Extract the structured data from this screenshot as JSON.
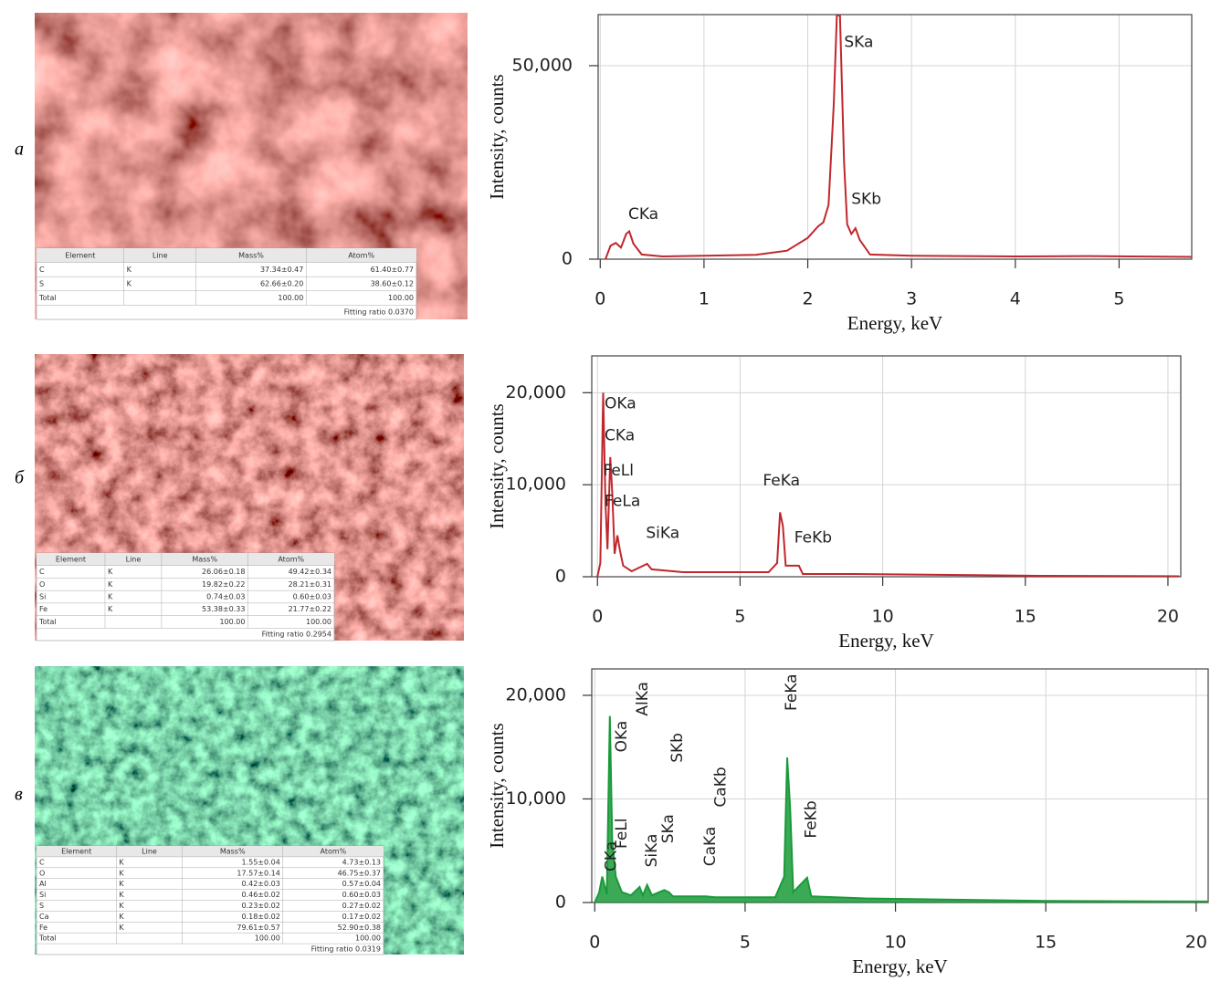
{
  "panels": [
    {
      "label": "а",
      "table": {
        "header": [
          "Element",
          "Line",
          "Mass%",
          "Atom%"
        ],
        "rows": [
          [
            "C",
            "K",
            "37.34±0.47",
            "61.40±0.77"
          ],
          [
            "S",
            "K",
            "62.66±0.20",
            "38.60±0.12"
          ],
          [
            "Total",
            null,
            "100.00",
            "100.00"
          ]
        ],
        "footer": "Fitting ratio 0.0370"
      }
    },
    {
      "label": "б",
      "table": {
        "header": [
          "Element",
          "Line",
          "Mass%",
          "Atom%"
        ],
        "rows": [
          [
            "C",
            "K",
            "26.06±0.18",
            "49.42±0.34"
          ],
          [
            "O",
            "K",
            "19.82±0.22",
            "28.21±0.31"
          ],
          [
            "Si",
            "K",
            "0.74±0.03",
            "0.60±0.03"
          ],
          [
            "Fe",
            "K",
            "53.38±0.33",
            "21.77±0.22"
          ],
          [
            "Total",
            null,
            "100.00",
            "100.00"
          ]
        ],
        "footer": "Fitting ratio 0.2954"
      }
    },
    {
      "label": "в",
      "table": {
        "header": [
          "Element",
          "Line",
          "Mass%",
          "Atom%"
        ],
        "rows": [
          [
            "C",
            "K",
            "1.55±0.04",
            "4.73±0.13"
          ],
          [
            "O",
            "K",
            "17.57±0.14",
            "46.75±0.37"
          ],
          [
            "Al",
            "K",
            "0.42±0.03",
            "0.57±0.04"
          ],
          [
            "Si",
            "K",
            "0.46±0.02",
            "0.60±0.03"
          ],
          [
            "S",
            "K",
            "0.23±0.02",
            "0.27±0.02"
          ],
          [
            "Ca",
            "K",
            "0.18±0.02",
            "0.17±0.02"
          ],
          [
            "Fe",
            "K",
            "79.61±0.57",
            "52.90±0.38"
          ],
          [
            "Total",
            null,
            "100.00",
            "100.00"
          ]
        ],
        "footer": "Fitting ratio 0.0319"
      }
    }
  ],
  "chart_data": [
    {
      "type": "line",
      "xlabel": "Energy, keV",
      "ylabel": "Intensity, counts",
      "color": "#c0272d",
      "grid": true,
      "x": [
        0.05,
        0.1,
        0.15,
        0.2,
        0.25,
        0.28,
        0.32,
        0.4,
        0.6,
        1.0,
        1.5,
        1.8,
        2.0,
        2.1,
        2.15,
        2.2,
        2.25,
        2.28,
        2.31,
        2.35,
        2.38,
        2.42,
        2.46,
        2.5,
        2.6,
        3.0,
        4.0,
        4.7,
        5.7
      ],
      "values": [
        0,
        3500,
        4200,
        3000,
        6500,
        7200,
        4000,
        1200,
        700,
        900,
        1100,
        2200,
        5500,
        8500,
        9500,
        14000,
        40000,
        63000,
        63000,
        25000,
        9000,
        6500,
        8000,
        5000,
        1200,
        900,
        700,
        800,
        600
      ],
      "xlim": [
        -0.02,
        5.7
      ],
      "ylim": [
        0,
        63200
      ],
      "xticks": [
        0,
        1,
        2,
        3,
        4,
        5
      ],
      "yticks": [
        0,
        {
          "value": 50000,
          "label": "50,000"
        }
      ],
      "annotations": [
        {
          "text": "CKa",
          "x": 0.27,
          "y": 11500
        },
        {
          "text": "SKa",
          "x": 2.35,
          "y": 56000
        },
        {
          "text": "SKb",
          "x": 2.42,
          "y": 15500
        }
      ]
    },
    {
      "type": "line",
      "xlabel": "Energy, keV",
      "ylabel": "Intensity, counts",
      "color": "#c0272d",
      "grid": true,
      "x": [
        0,
        0.1,
        0.2,
        0.28,
        0.35,
        0.45,
        0.52,
        0.6,
        0.7,
        0.78,
        0.9,
        1.2,
        1.74,
        1.9,
        3,
        6.0,
        6.3,
        6.4,
        6.5,
        6.6,
        7.06,
        7.2,
        9,
        14,
        15.5,
        20.4
      ],
      "values": [
        0,
        1500,
        20000,
        8000,
        3000,
        13000,
        9000,
        2500,
        4500,
        3000,
        1200,
        600,
        1400,
        800,
        500,
        500,
        1500,
        7000,
        5500,
        1200,
        1200,
        300,
        300,
        150,
        100,
        50
      ],
      "xlim": [
        -0.2,
        20.45
      ],
      "ylim": [
        0,
        24000
      ],
      "xticks": [
        0,
        5,
        10,
        15,
        20
      ],
      "yticks": [
        0,
        {
          "value": 10000,
          "label": "10,000"
        },
        {
          "value": 20000,
          "label": "20,000"
        }
      ],
      "annotations": [
        {
          "text": "OKa",
          "x": 0.25,
          "y": 18800
        },
        {
          "text": "CKa",
          "x": 0.25,
          "y": 15300
        },
        {
          "text": "FeLl",
          "x": 0.2,
          "y": 11500
        },
        {
          "text": "FeLa",
          "x": 0.25,
          "y": 8200
        },
        {
          "text": "SiKa",
          "x": 1.7,
          "y": 4700
        },
        {
          "text": "FeKa",
          "x": 5.8,
          "y": 10400
        },
        {
          "text": "FeKb",
          "x": 6.9,
          "y": 4200
        }
      ]
    },
    {
      "type": "area",
      "xlabel": "Energy, keV",
      "ylabel": "Intensity, counts",
      "color": "#1a9a3a",
      "grid": true,
      "x": [
        0,
        0.15,
        0.25,
        0.4,
        0.5,
        0.58,
        0.7,
        0.9,
        1.2,
        1.49,
        1.6,
        1.74,
        1.9,
        2.31,
        2.46,
        2.6,
        3.69,
        4.0,
        6.0,
        6.3,
        6.4,
        6.5,
        6.6,
        7.06,
        7.2,
        9,
        15,
        20.4
      ],
      "values": [
        0,
        1000,
        2500,
        800,
        18000,
        6000,
        2500,
        1000,
        700,
        1500,
        700,
        1700,
        700,
        1200,
        1000,
        600,
        600,
        500,
        500,
        2500,
        14000,
        9000,
        1000,
        2400,
        600,
        400,
        150,
        100
      ],
      "xlim": [
        -0.1,
        20.4
      ],
      "ylim": [
        0,
        22550
      ],
      "xticks": [
        0,
        5,
        10,
        15,
        20
      ],
      "yticks": [
        0,
        {
          "value": 10000,
          "label": "10,000"
        },
        {
          "value": 20000,
          "label": "20,000"
        }
      ],
      "annotations": [
        {
          "text": "CKa",
          "x": 0.55,
          "y": 3000
        },
        {
          "text": "FeLl",
          "x": 0.9,
          "y": 5200
        },
        {
          "text": "OKa",
          "x": 0.9,
          "y": 14500
        },
        {
          "text": "AlKa",
          "x": 1.6,
          "y": 18000
        },
        {
          "text": "SiKa",
          "x": 1.9,
          "y": 3400
        },
        {
          "text": "SKa",
          "x": 2.45,
          "y": 5700
        },
        {
          "text": "SKb",
          "x": 2.75,
          "y": 13500
        },
        {
          "text": "CaKa",
          "x": 3.85,
          "y": 3500
        },
        {
          "text": "CaKb",
          "x": 4.2,
          "y": 9200
        },
        {
          "text": "FeKa",
          "x": 6.55,
          "y": 18500
        },
        {
          "text": "FeKb",
          "x": 7.2,
          "y": 6200
        }
      ]
    }
  ]
}
